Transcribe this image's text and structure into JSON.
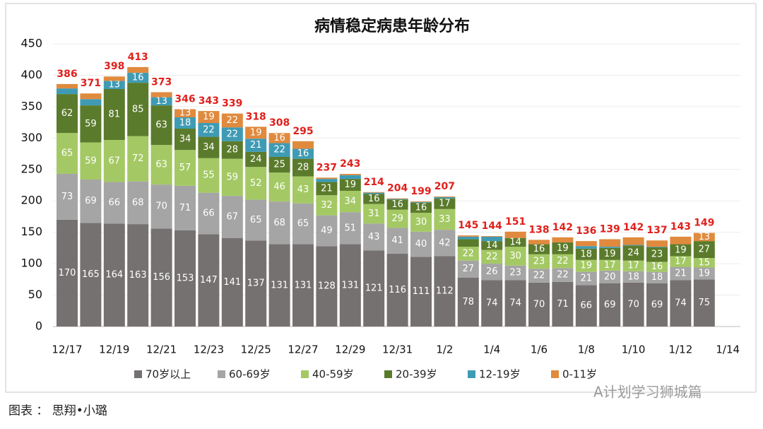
{
  "chart_data": {
    "type": "stacked_bar",
    "title": "病情稳定病患年龄分布",
    "categories": [
      "12/17",
      null,
      "12/19",
      null,
      "12/21",
      null,
      "12/23",
      null,
      "12/25",
      null,
      "12/27",
      null,
      "12/29",
      null,
      "12/31",
      null,
      "1/2",
      null,
      "1/4",
      null,
      "1/6",
      null,
      "1/8",
      null,
      "1/10",
      null,
      "1/12",
      null,
      "1/14"
    ],
    "series": [
      {
        "name": "70岁以上",
        "color": "#767171",
        "values": [
          170,
          165,
          164,
          163,
          156,
          153,
          147,
          141,
          137,
          131,
          131,
          128,
          131,
          121,
          116,
          111,
          112,
          78,
          74,
          74,
          70,
          71,
          66,
          69,
          70,
          69,
          74,
          75,
          null
        ]
      },
      {
        "name": "60-69岁",
        "color": "#a5a5a5",
        "values": [
          73,
          69,
          66,
          68,
          70,
          71,
          66,
          67,
          65,
          68,
          65,
          49,
          51,
          43,
          41,
          40,
          42,
          27,
          26,
          23,
          22,
          22,
          21,
          20,
          18,
          18,
          21,
          19,
          null
        ]
      },
      {
        "name": "40-59岁",
        "color": "#a4c964",
        "values": [
          65,
          59,
          67,
          72,
          63,
          57,
          55,
          59,
          52,
          46,
          43,
          32,
          34,
          31,
          29,
          30,
          33,
          22,
          22,
          30,
          23,
          22,
          19,
          17,
          17,
          16,
          17,
          15,
          null
        ]
      },
      {
        "name": "20-39岁",
        "color": "#5b7b2c",
        "values": [
          62,
          59,
          81,
          85,
          63,
          34,
          34,
          28,
          24,
          25,
          28,
          21,
          19,
          16,
          16,
          16,
          17,
          12,
          14,
          14,
          16,
          19,
          18,
          19,
          24,
          23,
          19,
          27,
          null
        ]
      },
      {
        "name": "12-19岁",
        "color": "#3f9bb4",
        "values": [
          9,
          10,
          13,
          16,
          13,
          18,
          22,
          22,
          21,
          22,
          16,
          5,
          6,
          2,
          1,
          1,
          2,
          4,
          7,
          0,
          0,
          0,
          4,
          2,
          1,
          1,
          0,
          0,
          null
        ]
      },
      {
        "name": "0-11岁",
        "color": "#e08a3e",
        "values": [
          7,
          9,
          7,
          9,
          8,
          13,
          19,
          22,
          19,
          16,
          12,
          2,
          2,
          1,
          1,
          1,
          1,
          2,
          1,
          10,
          7,
          8,
          8,
          12,
          12,
          10,
          12,
          13,
          null
        ]
      }
    ],
    "totals": [
      386,
      371,
      398,
      413,
      373,
      346,
      343,
      339,
      318,
      308,
      295,
      237,
      243,
      214,
      204,
      199,
      207,
      145,
      144,
      151,
      138,
      142,
      136,
      139,
      142,
      137,
      143,
      149,
      null
    ],
    "ylim": [
      0,
      450
    ],
    "yticks": [
      0,
      50,
      100,
      150,
      200,
      250,
      300,
      350,
      400,
      450
    ],
    "grid": true,
    "legend": "bottom"
  },
  "caption": "图表 ： 思翔•小璐",
  "watermark": "A计划学习狮城篇"
}
